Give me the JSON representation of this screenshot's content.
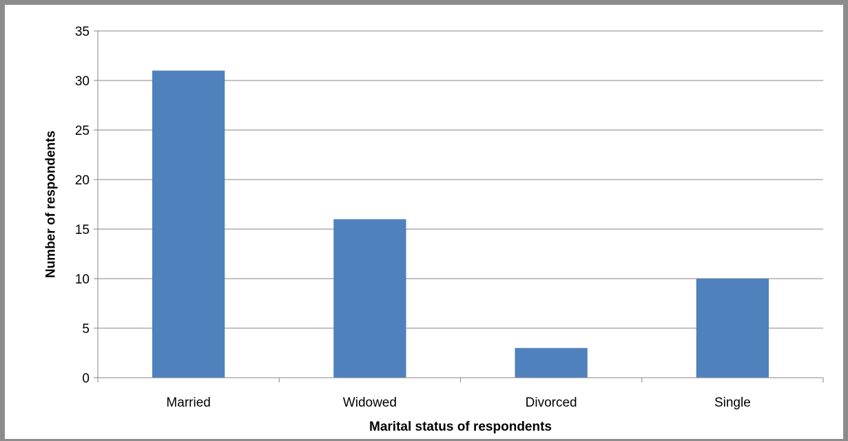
{
  "chart_data": {
    "type": "bar",
    "title": "",
    "xlabel": "Marital status of respondents",
    "ylabel": "Number of respondents",
    "categories": [
      "Married",
      "Widowed",
      "Divorced",
      "Single"
    ],
    "values": [
      31,
      16,
      3,
      10
    ],
    "ylim": [
      0,
      35
    ],
    "yticks": [
      0,
      5,
      10,
      15,
      20,
      25,
      30,
      35
    ],
    "grid": true,
    "legend": "none",
    "bar_color": "#4f81bd",
    "grid_color": "#868686"
  }
}
